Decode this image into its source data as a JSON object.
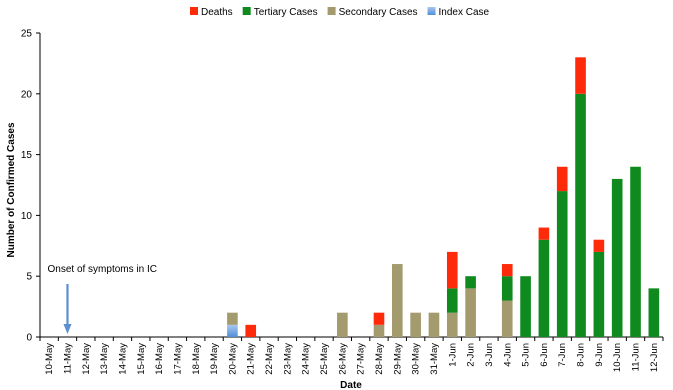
{
  "chart_data": {
    "type": "bar",
    "stacked": true,
    "xlabel": "Date",
    "ylabel": "Number of Confirmed Cases",
    "ylim": [
      0,
      25
    ],
    "yticks": [
      0,
      5,
      10,
      15,
      20,
      25
    ],
    "grid": false,
    "legend_position": "top-right",
    "legend_order": [
      "Deaths",
      "Tertiary Cases",
      "Secondary Cases",
      "Index Case"
    ],
    "categories": [
      "10-May",
      "11-May",
      "12-May",
      "13-May",
      "14-May",
      "15-May",
      "16-May",
      "17-May",
      "18-May",
      "19-May",
      "20-May",
      "21-May",
      "22-May",
      "23-May",
      "24-May",
      "25-May",
      "26-May",
      "27-May",
      "28-May",
      "29-May",
      "30-May",
      "31-May",
      "1-Jun",
      "2-Jun",
      "3-Jun",
      "4-Jun",
      "5-Jun",
      "6-Jun",
      "7-Jun",
      "8-Jun",
      "9-Jun",
      "10-Jun",
      "11-Jun",
      "12-Jun"
    ],
    "series": [
      {
        "name": "Index Case",
        "color": "#5b9bd5",
        "values": [
          0,
          0,
          0,
          0,
          0,
          0,
          0,
          0,
          0,
          0,
          1,
          0,
          0,
          0,
          0,
          0,
          0,
          0,
          0,
          0,
          0,
          0,
          0,
          0,
          0,
          0,
          0,
          0,
          0,
          0,
          0,
          0,
          0,
          0
        ]
      },
      {
        "name": "Secondary Cases",
        "color": "#a39a6e",
        "values": [
          0,
          0,
          0,
          0,
          0,
          0,
          0,
          0,
          0,
          0,
          1,
          0,
          0,
          0,
          0,
          0,
          2,
          0,
          1,
          6,
          2,
          2,
          2,
          4,
          0,
          3,
          0,
          0,
          0,
          0,
          0,
          0,
          0,
          0
        ]
      },
      {
        "name": "Tertiary Cases",
        "color": "#0f8a1f",
        "values": [
          0,
          0,
          0,
          0,
          0,
          0,
          0,
          0,
          0,
          0,
          0,
          0,
          0,
          0,
          0,
          0,
          0,
          0,
          0,
          0,
          0,
          0,
          2,
          1,
          0,
          2,
          5,
          8,
          12,
          20,
          7,
          13,
          14,
          4
        ]
      },
      {
        "name": "Deaths",
        "color": "#ff2a0a",
        "values": [
          0,
          0,
          0,
          0,
          0,
          0,
          0,
          0,
          0,
          0,
          0,
          1,
          0,
          0,
          0,
          0,
          0,
          0,
          1,
          0,
          0,
          0,
          3,
          0,
          0,
          1,
          0,
          1,
          2,
          3,
          1,
          0,
          0,
          0
        ]
      }
    ],
    "annotations": [
      {
        "text": "Onset of symptoms in IC",
        "category": "11-May",
        "arrow": true
      }
    ]
  }
}
